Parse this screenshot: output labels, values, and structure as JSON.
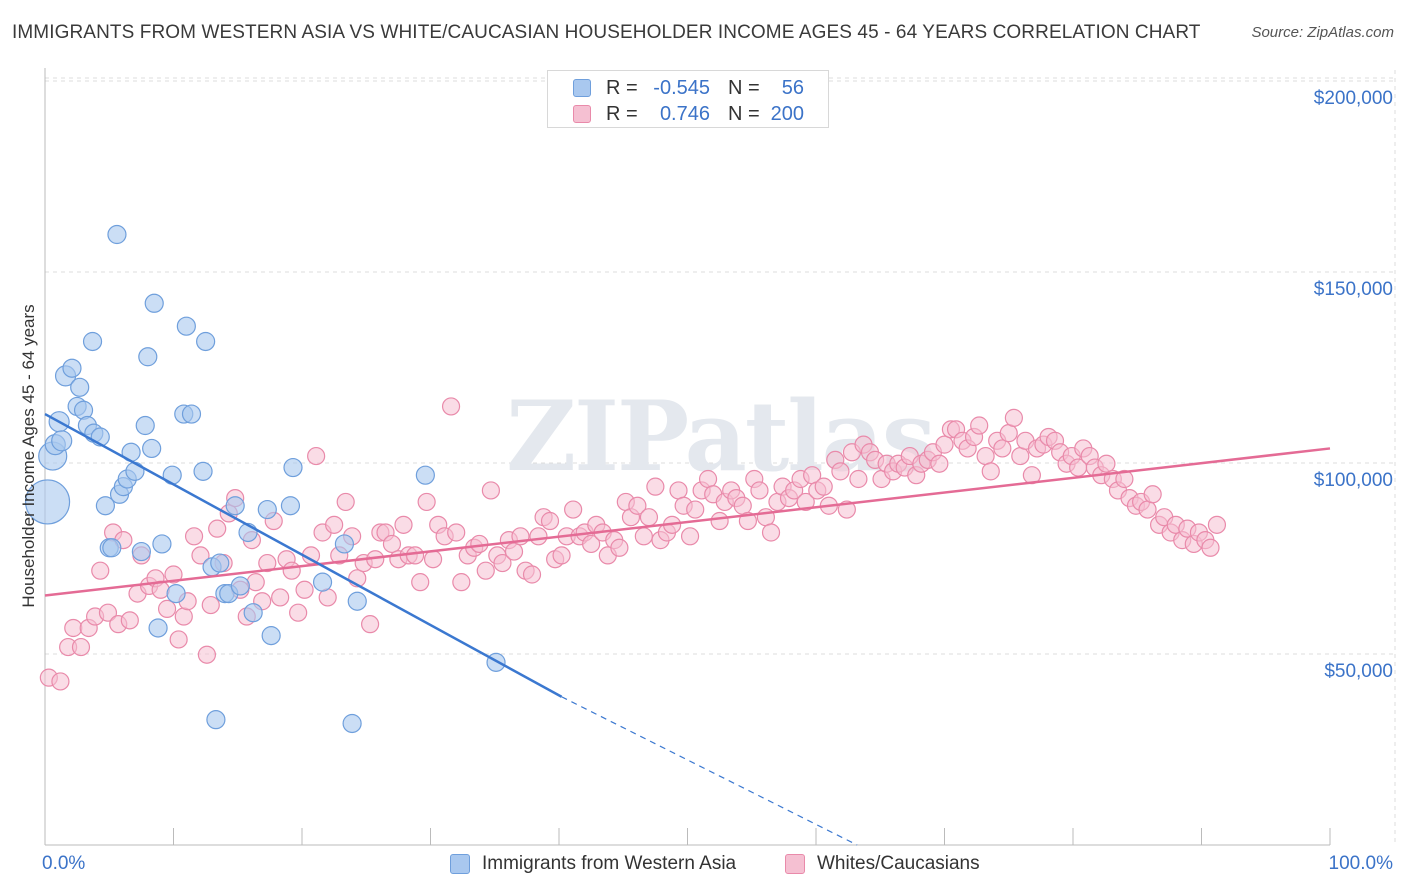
{
  "title": "IMMIGRANTS FROM WESTERN ASIA VS WHITE/CAUCASIAN HOUSEHOLDER INCOME AGES 45 - 64 YEARS CORRELATION CHART",
  "source": "Source: ZipAtlas.com",
  "watermark": "ZIPatlas",
  "colors": {
    "blue_fill": "#a9c8ef",
    "blue_stroke": "#6f9fdc",
    "blue_line": "#3b78d0",
    "pink_fill": "#f5c0d2",
    "pink_stroke": "#e98aaa",
    "pink_line": "#e46b95",
    "tick_text": "#3b73c8",
    "grid": "#dcdcdc"
  },
  "legend_top": [
    {
      "r_label": "R =",
      "r_value": "-0.545",
      "n_label": "N =",
      "n_value": "56",
      "series": "blue"
    },
    {
      "r_label": "R =",
      "r_value": "0.746",
      "n_label": "N =",
      "n_value": "200",
      "series": "pink"
    }
  ],
  "legend_bottom": [
    {
      "label": "Immigrants from Western Asia",
      "series": "blue"
    },
    {
      "label": "Whites/Caucasians",
      "series": "pink"
    }
  ],
  "chart_data": {
    "type": "scatter",
    "title": "IMMIGRANTS FROM WESTERN ASIA VS WHITE/CAUCASIAN HOUSEHOLDER INCOME AGES 45 - 64 YEARS CORRELATION CHART",
    "xlabel": "",
    "ylabel": "Householder Income Ages 45 - 64 years",
    "xlim": [
      0,
      100
    ],
    "ylim": [
      0,
      205000
    ],
    "x_tick_labels": {
      "min": "0.0%",
      "max": "100.0%"
    },
    "y_ticks": [
      {
        "value": 200000,
        "label": "$200,000"
      },
      {
        "value": 150000,
        "label": "$150,000"
      },
      {
        "value": 100000,
        "label": "$100,000"
      },
      {
        "value": 50000,
        "label": "$50,000"
      }
    ],
    "grid": true,
    "series": [
      {
        "name": "Immigrants from Western Asia",
        "color": "blue",
        "trend": {
          "x0": 0,
          "y0": 117000,
          "x1": 40.2,
          "y1": 43000,
          "dash_to_x": 63.2,
          "dash_to_y": 0
        },
        "points": [
          [
            0.2,
            94000,
            22
          ],
          [
            0.6,
            106000,
            14
          ],
          [
            0.8,
            109000,
            10
          ],
          [
            1.1,
            115000,
            10
          ],
          [
            1.3,
            110000,
            10
          ],
          [
            1.6,
            127000,
            10
          ],
          [
            2.1,
            129000,
            9
          ],
          [
            2.5,
            119000,
            9
          ],
          [
            2.7,
            124000,
            9
          ],
          [
            3.0,
            118000,
            9
          ],
          [
            3.3,
            114000,
            9
          ],
          [
            3.7,
            136000,
            9
          ],
          [
            3.8,
            112000,
            9
          ],
          [
            4.3,
            111000,
            9
          ],
          [
            4.7,
            93000,
            9
          ],
          [
            5.0,
            82000,
            9
          ],
          [
            5.2,
            82000,
            9
          ],
          [
            5.6,
            164000,
            9
          ],
          [
            5.8,
            96000,
            9
          ],
          [
            6.1,
            98000,
            9
          ],
          [
            6.4,
            100000,
            9
          ],
          [
            6.7,
            107000,
            9
          ],
          [
            7.0,
            102000,
            9
          ],
          [
            7.5,
            81000,
            9
          ],
          [
            7.8,
            114000,
            9
          ],
          [
            8.0,
            132000,
            9
          ],
          [
            8.3,
            108000,
            9
          ],
          [
            8.5,
            146000,
            9
          ],
          [
            8.8,
            61000,
            9
          ],
          [
            9.1,
            83000,
            9
          ],
          [
            9.9,
            101000,
            9
          ],
          [
            10.2,
            70000,
            9
          ],
          [
            10.8,
            117000,
            9
          ],
          [
            11.0,
            140000,
            9
          ],
          [
            11.4,
            117000,
            9
          ],
          [
            12.3,
            102000,
            9
          ],
          [
            12.5,
            136000,
            9
          ],
          [
            13.0,
            77000,
            9
          ],
          [
            13.3,
            37000,
            9
          ],
          [
            13.6,
            78000,
            9
          ],
          [
            14.0,
            70000,
            9
          ],
          [
            14.3,
            70000,
            9
          ],
          [
            14.8,
            93000,
            9
          ],
          [
            15.8,
            86000,
            9
          ],
          [
            16.2,
            65000,
            9
          ],
          [
            17.3,
            92000,
            9
          ],
          [
            17.6,
            59000,
            9
          ],
          [
            19.1,
            93000,
            9
          ],
          [
            19.3,
            103000,
            9
          ],
          [
            21.6,
            73000,
            9
          ],
          [
            23.3,
            83000,
            9
          ],
          [
            23.9,
            36000,
            9
          ],
          [
            24.3,
            68000,
            9
          ],
          [
            29.6,
            101000,
            9
          ],
          [
            35.1,
            52000,
            9
          ],
          [
            15.2,
            72000,
            9
          ]
        ]
      },
      {
        "name": "Whites/Caucasians",
        "color": "pink",
        "trend": {
          "x0": 0,
          "y0": 69500,
          "x1": 100,
          "y1": 108000
        },
        "points": [
          [
            0.3,
            48000
          ],
          [
            1.2,
            47000
          ],
          [
            1.8,
            56000
          ],
          [
            2.2,
            61000
          ],
          [
            2.8,
            56000
          ],
          [
            3.4,
            61000
          ],
          [
            3.9,
            64000
          ],
          [
            4.3,
            76000
          ],
          [
            4.9,
            65000
          ],
          [
            5.3,
            86000
          ],
          [
            5.7,
            62000
          ],
          [
            6.1,
            84000
          ],
          [
            6.6,
            63000
          ],
          [
            7.2,
            70000
          ],
          [
            7.5,
            80000
          ],
          [
            8.1,
            72000
          ],
          [
            8.6,
            74000
          ],
          [
            9.0,
            71000
          ],
          [
            9.5,
            66000
          ],
          [
            10.0,
            75000
          ],
          [
            10.4,
            58000
          ],
          [
            10.8,
            64000
          ],
          [
            11.1,
            68000
          ],
          [
            11.6,
            85000
          ],
          [
            12.1,
            80000
          ],
          [
            12.6,
            54000
          ],
          [
            12.9,
            67000
          ],
          [
            13.4,
            87000
          ],
          [
            13.9,
            78000
          ],
          [
            14.3,
            91000
          ],
          [
            14.8,
            95000
          ],
          [
            15.2,
            71000
          ],
          [
            15.7,
            64000
          ],
          [
            16.1,
            84000
          ],
          [
            16.4,
            73000
          ],
          [
            16.9,
            68000
          ],
          [
            17.3,
            78000
          ],
          [
            17.8,
            89000
          ],
          [
            18.3,
            69000
          ],
          [
            18.8,
            79000
          ],
          [
            19.2,
            76000
          ],
          [
            19.7,
            65000
          ],
          [
            20.2,
            71000
          ],
          [
            20.7,
            80000
          ],
          [
            21.1,
            106000
          ],
          [
            21.6,
            86000
          ],
          [
            22.0,
            69000
          ],
          [
            22.5,
            88000
          ],
          [
            22.9,
            80000
          ],
          [
            23.4,
            94000
          ],
          [
            23.9,
            85000
          ],
          [
            24.3,
            74000
          ],
          [
            24.8,
            78000
          ],
          [
            25.3,
            62000
          ],
          [
            25.7,
            79000
          ],
          [
            26.1,
            86000
          ],
          [
            26.5,
            86000
          ],
          [
            27.0,
            83000
          ],
          [
            27.5,
            79000
          ],
          [
            27.9,
            88000
          ],
          [
            28.3,
            80000
          ],
          [
            28.8,
            80000
          ],
          [
            29.2,
            73000
          ],
          [
            29.7,
            94000
          ],
          [
            30.2,
            79000
          ],
          [
            30.6,
            88000
          ],
          [
            31.1,
            85000
          ],
          [
            31.6,
            119000
          ],
          [
            32.0,
            86000
          ],
          [
            32.4,
            73000
          ],
          [
            32.9,
            80000
          ],
          [
            33.4,
            82000
          ],
          [
            33.8,
            83000
          ],
          [
            34.3,
            76000
          ],
          [
            34.7,
            97000
          ],
          [
            35.2,
            80000
          ],
          [
            35.6,
            78000
          ],
          [
            36.1,
            84000
          ],
          [
            36.5,
            81000
          ],
          [
            37.0,
            85000
          ],
          [
            37.4,
            76000
          ],
          [
            37.9,
            75000
          ],
          [
            38.4,
            85000
          ],
          [
            38.8,
            90000
          ],
          [
            39.3,
            89000
          ],
          [
            39.7,
            79000
          ],
          [
            40.2,
            80000
          ],
          [
            40.6,
            85000
          ],
          [
            41.1,
            92000
          ],
          [
            41.6,
            85000
          ],
          [
            42.0,
            86000
          ],
          [
            42.5,
            83000
          ],
          [
            42.9,
            88000
          ],
          [
            43.4,
            86000
          ],
          [
            43.8,
            80000
          ],
          [
            44.3,
            84000
          ],
          [
            44.7,
            82000
          ],
          [
            45.2,
            94000
          ],
          [
            45.6,
            90000
          ],
          [
            46.1,
            93000
          ],
          [
            46.6,
            85000
          ],
          [
            47.0,
            90000
          ],
          [
            47.5,
            98000
          ],
          [
            47.9,
            84000
          ],
          [
            48.4,
            86000
          ],
          [
            48.8,
            88000
          ],
          [
            49.3,
            97000
          ],
          [
            49.7,
            93000
          ],
          [
            50.2,
            85000
          ],
          [
            50.6,
            92000
          ],
          [
            51.1,
            97000
          ],
          [
            51.6,
            100000
          ],
          [
            52.0,
            96000
          ],
          [
            52.5,
            89000
          ],
          [
            52.9,
            94000
          ],
          [
            53.4,
            97000
          ],
          [
            53.8,
            95000
          ],
          [
            54.3,
            93000
          ],
          [
            54.7,
            89000
          ],
          [
            55.2,
            100000
          ],
          [
            55.6,
            97000
          ],
          [
            56.1,
            90000
          ],
          [
            56.5,
            86000
          ],
          [
            57.0,
            94000
          ],
          [
            57.4,
            98000
          ],
          [
            57.9,
            95000
          ],
          [
            58.3,
            97000
          ],
          [
            58.8,
            100000
          ],
          [
            59.2,
            94000
          ],
          [
            59.7,
            101000
          ],
          [
            60.1,
            97000
          ],
          [
            60.6,
            98000
          ],
          [
            61.0,
            93000
          ],
          [
            61.5,
            105000
          ],
          [
            61.9,
            102000
          ],
          [
            62.4,
            92000
          ],
          [
            62.8,
            107000
          ],
          [
            63.3,
            100000
          ],
          [
            63.7,
            109000
          ],
          [
            64.2,
            107000
          ],
          [
            64.6,
            105000
          ],
          [
            65.1,
            100000
          ],
          [
            65.5,
            104000
          ],
          [
            66.0,
            102000
          ],
          [
            66.4,
            104000
          ],
          [
            66.9,
            103000
          ],
          [
            67.3,
            106000
          ],
          [
            67.8,
            101000
          ],
          [
            68.2,
            104000
          ],
          [
            68.7,
            105000
          ],
          [
            69.1,
            107000
          ],
          [
            69.6,
            104000
          ],
          [
            70.0,
            109000
          ],
          [
            70.5,
            113000
          ],
          [
            70.9,
            113000
          ],
          [
            71.4,
            110000
          ],
          [
            71.8,
            108000
          ],
          [
            72.3,
            111000
          ],
          [
            72.7,
            114000
          ],
          [
            73.2,
            106000
          ],
          [
            73.6,
            102000
          ],
          [
            74.1,
            110000
          ],
          [
            74.5,
            108000
          ],
          [
            75.0,
            112000
          ],
          [
            75.4,
            116000
          ],
          [
            75.9,
            106000
          ],
          [
            76.3,
            110000
          ],
          [
            76.8,
            101000
          ],
          [
            77.2,
            108000
          ],
          [
            77.7,
            109000
          ],
          [
            78.1,
            111000
          ],
          [
            78.6,
            110000
          ],
          [
            79.0,
            107000
          ],
          [
            79.5,
            104000
          ],
          [
            79.9,
            106000
          ],
          [
            80.4,
            103000
          ],
          [
            80.8,
            108000
          ],
          [
            81.3,
            106000
          ],
          [
            81.7,
            103000
          ],
          [
            82.2,
            101000
          ],
          [
            82.6,
            104000
          ],
          [
            83.1,
            100000
          ],
          [
            83.5,
            97000
          ],
          [
            84.0,
            100000
          ],
          [
            84.4,
            95000
          ],
          [
            84.9,
            93000
          ],
          [
            85.3,
            94000
          ],
          [
            85.8,
            92000
          ],
          [
            86.2,
            96000
          ],
          [
            86.7,
            88000
          ],
          [
            87.1,
            90000
          ],
          [
            87.6,
            86000
          ],
          [
            88.0,
            88000
          ],
          [
            88.5,
            84000
          ],
          [
            88.9,
            87000
          ],
          [
            89.4,
            83000
          ],
          [
            89.8,
            86000
          ],
          [
            90.3,
            84000
          ],
          [
            90.7,
            82000
          ],
          [
            91.2,
            88000
          ]
        ]
      }
    ]
  }
}
